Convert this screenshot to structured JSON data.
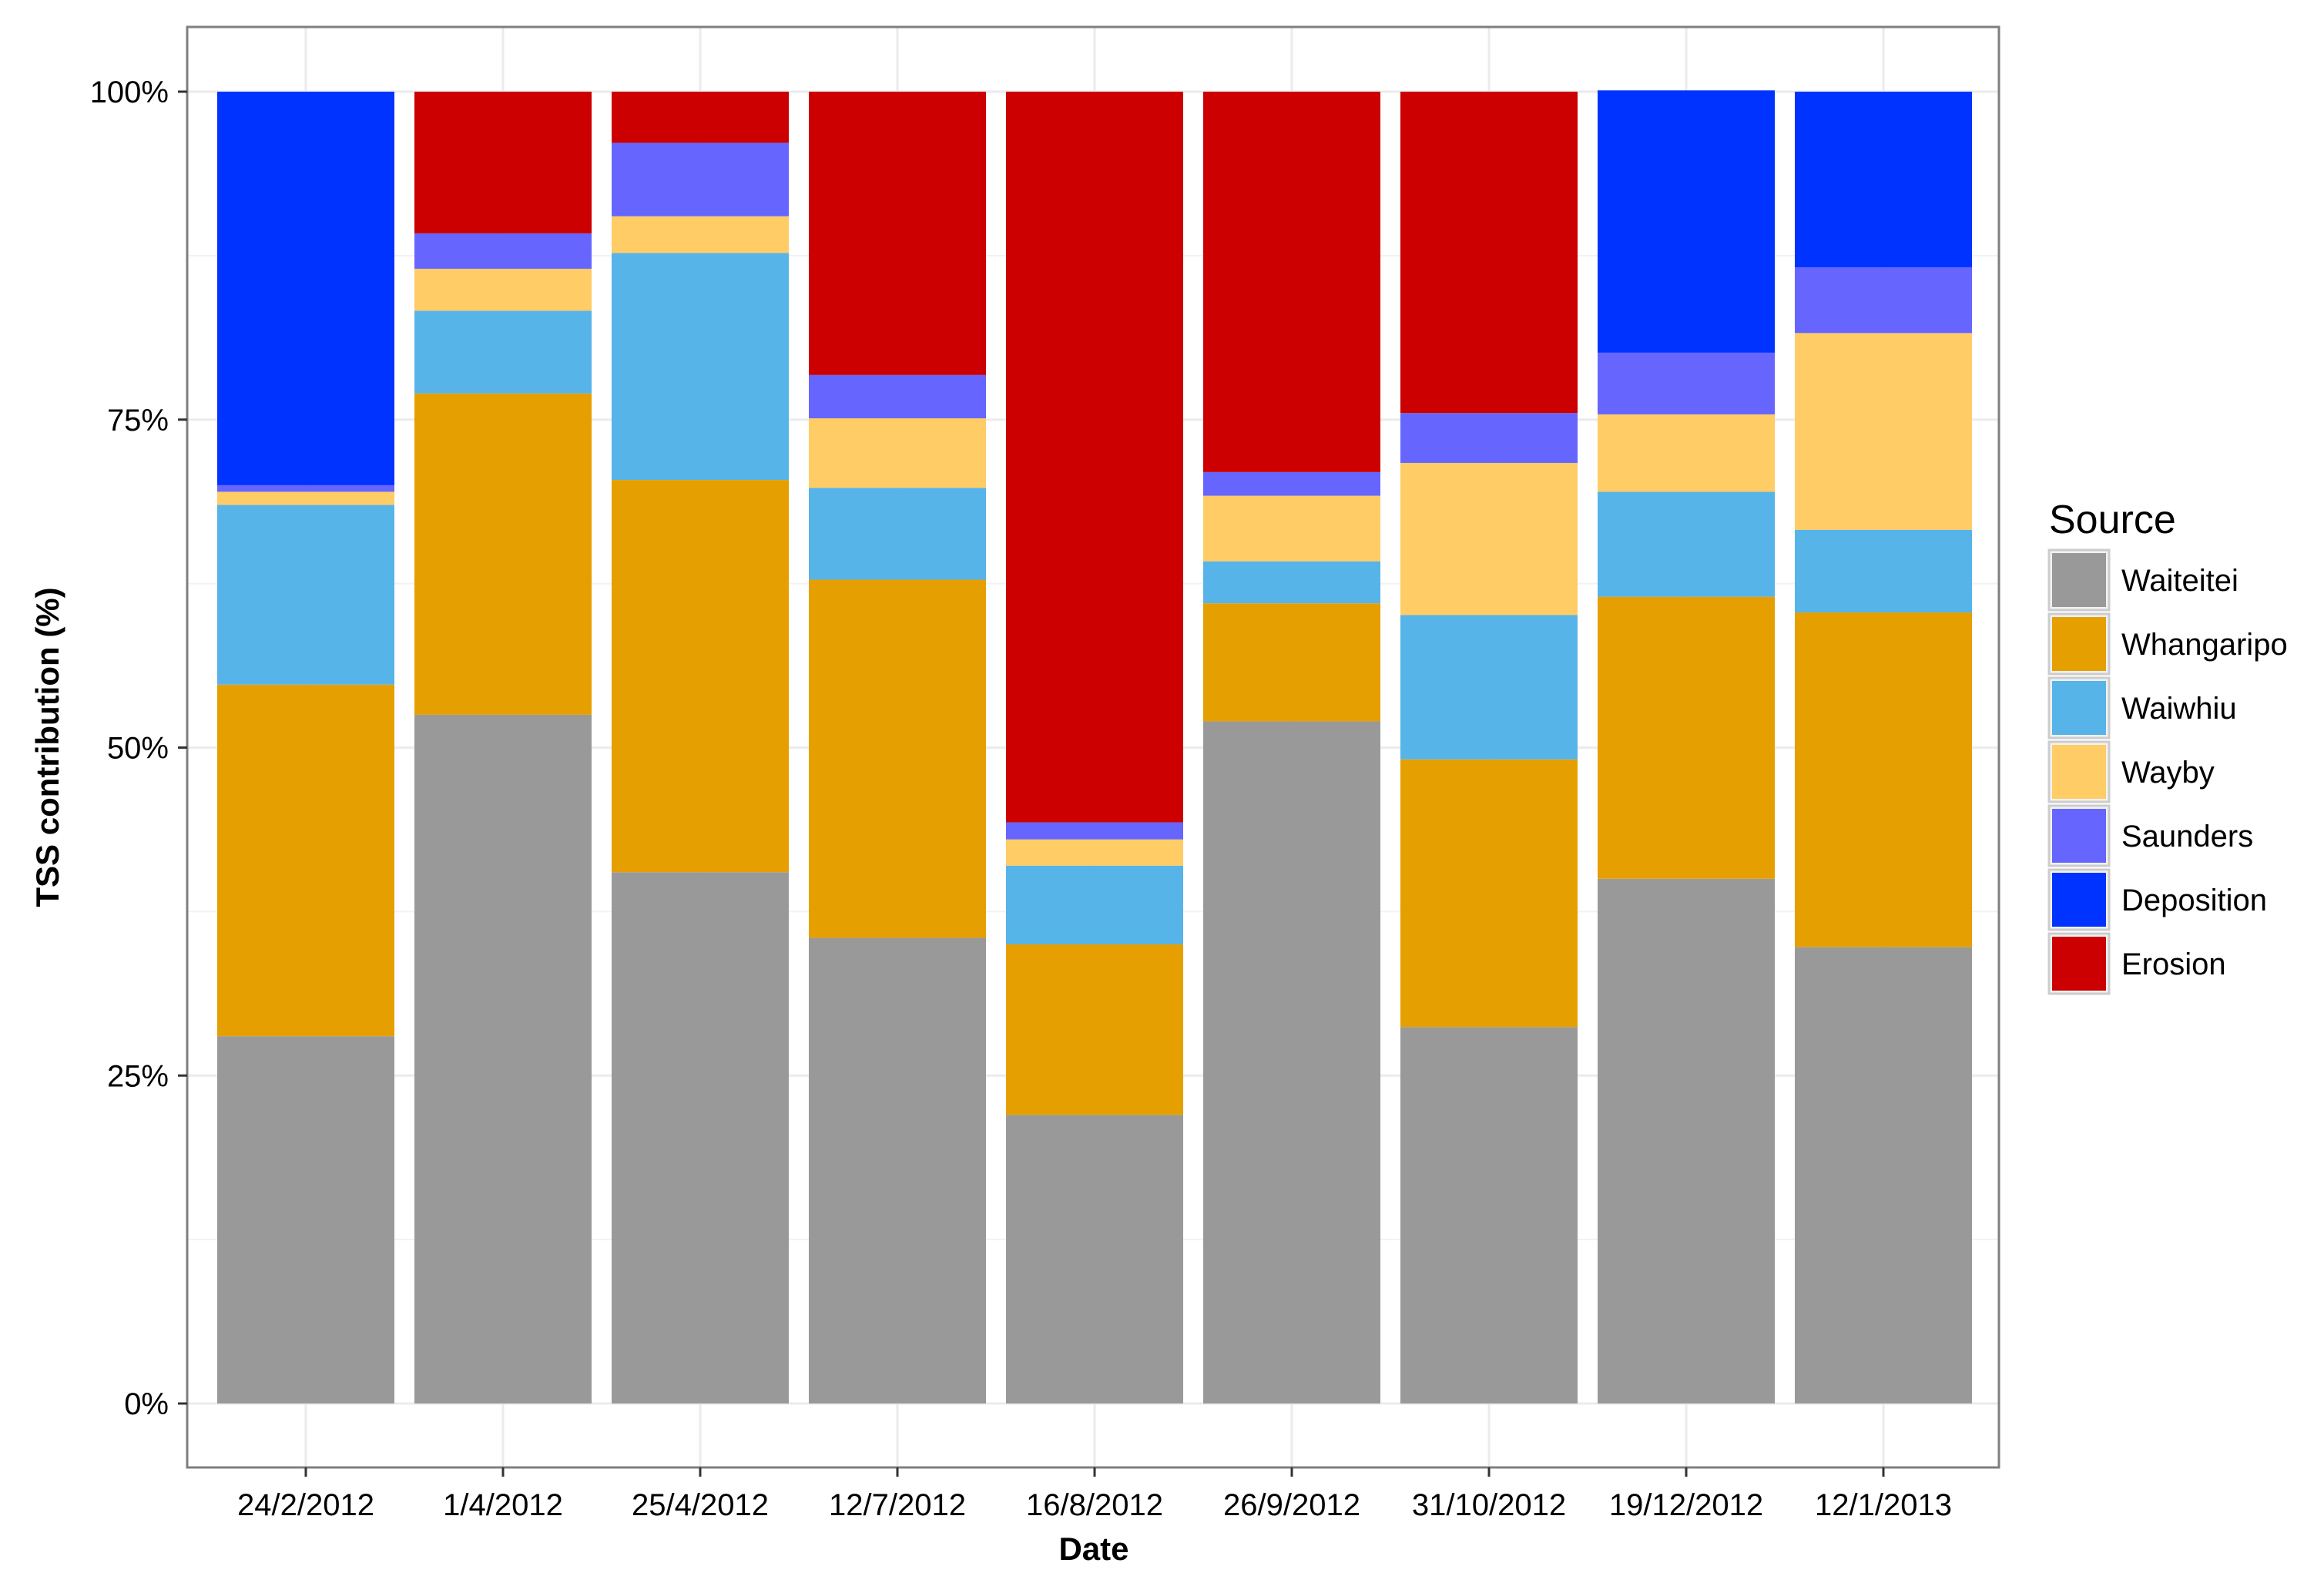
{
  "chart_data": {
    "type": "bar",
    "stacked": true,
    "title": "",
    "xlabel": "Date",
    "ylabel": "TSS contribution (%)",
    "ylim": [
      0,
      100
    ],
    "y_ticks": [
      0,
      25,
      50,
      75,
      100
    ],
    "y_tick_labels": [
      "0%",
      "25%",
      "50%",
      "75%",
      "100%"
    ],
    "grid": true,
    "legend_position": "right",
    "legend_title": "Source",
    "categories": [
      "24/2/2012",
      "1/4/2012",
      "25/4/2012",
      "12/7/2012",
      "16/8/2012",
      "26/9/2012",
      "31/10/2012",
      "19/12/2012",
      "12/1/2013"
    ],
    "series": [
      {
        "name": "Waiteitei",
        "color": "#999999",
        "values": [
          28.0,
          52.5,
          40.5,
          35.5,
          22.0,
          52.0,
          28.7,
          40.0,
          34.8
        ]
      },
      {
        "name": "Whangaripo",
        "color": "#E69F00",
        "values": [
          26.8,
          24.5,
          29.9,
          27.3,
          13.0,
          9.0,
          20.4,
          21.5,
          25.5
        ]
      },
      {
        "name": "Waiwhiu",
        "color": "#56B4E9",
        "values": [
          13.7,
          6.3,
          17.3,
          7.0,
          6.0,
          3.2,
          11.0,
          8.0,
          6.3
        ]
      },
      {
        "name": "Wayby",
        "color": "#FFCC66",
        "values": [
          1.0,
          3.2,
          2.8,
          5.3,
          2.0,
          5.0,
          11.6,
          5.9,
          15.0
        ]
      },
      {
        "name": "Saunders",
        "color": "#6666FF",
        "values": [
          0.5,
          2.7,
          5.6,
          3.3,
          1.3,
          1.8,
          3.8,
          4.7,
          5.0
        ]
      },
      {
        "name": "Deposition",
        "color": "#0033FF",
        "values": [
          30.0,
          0,
          0,
          0,
          0,
          0,
          0,
          20.0,
          13.4
        ]
      },
      {
        "name": "Erosion",
        "color": "#CC0000",
        "values": [
          0,
          10.8,
          3.9,
          21.6,
          55.7,
          29.0,
          24.5,
          0,
          0
        ]
      }
    ]
  }
}
